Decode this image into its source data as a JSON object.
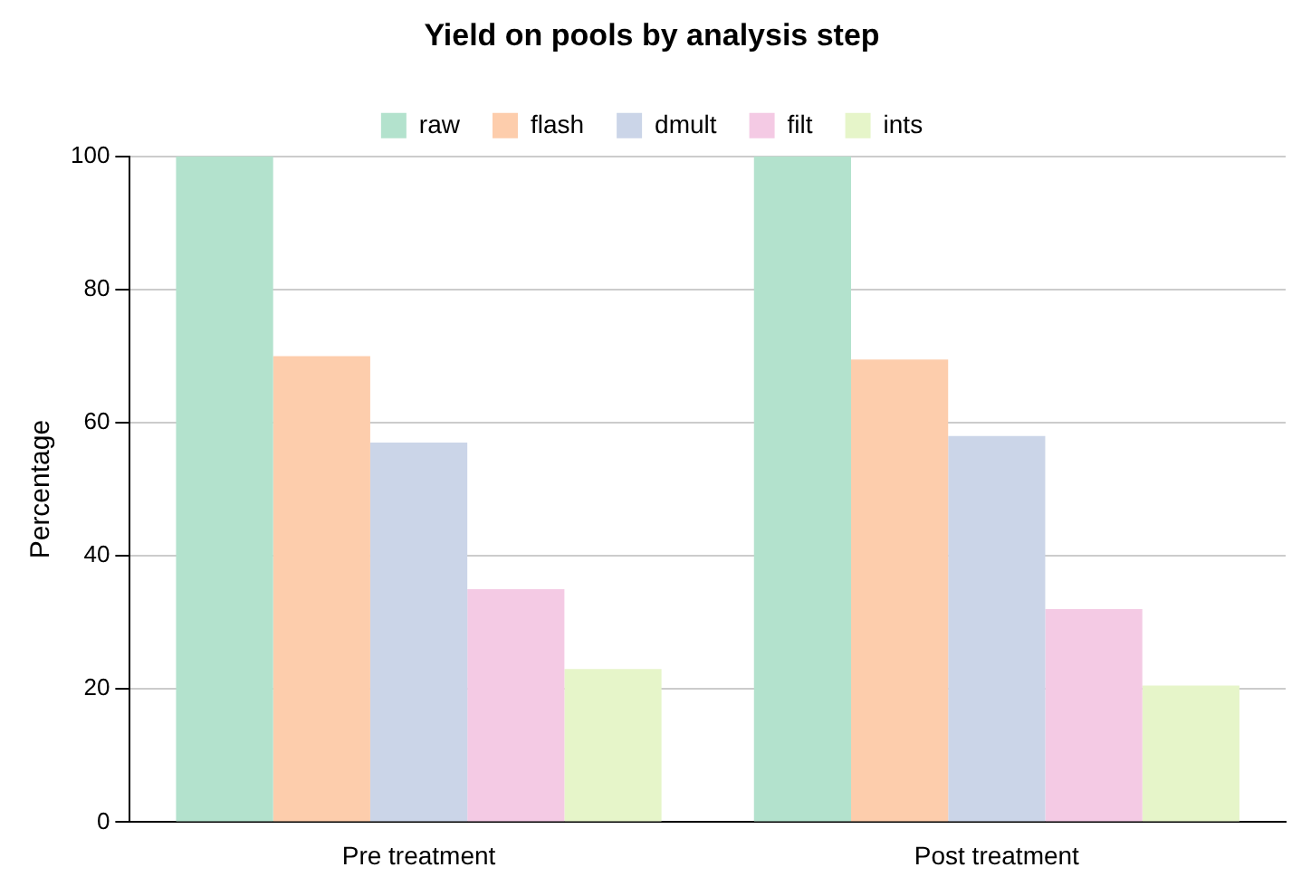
{
  "chart_data": {
    "type": "bar",
    "title": "Yield on pools by analysis step",
    "ylabel": "Percentage",
    "categories": [
      "Pre treatment",
      "Post treatment"
    ],
    "series": [
      {
        "name": "raw",
        "color": "#b3e2cd",
        "values": [
          100,
          100
        ]
      },
      {
        "name": "flash",
        "color": "#fdcdac",
        "values": [
          70,
          69.5
        ]
      },
      {
        "name": "dmult",
        "color": "#cbd5e8",
        "values": [
          57,
          58
        ]
      },
      {
        "name": "filt",
        "color": "#f4cae4",
        "values": [
          35,
          32
        ]
      },
      {
        "name": "ints",
        "color": "#e6f5c9",
        "values": [
          23,
          20.5
        ]
      }
    ],
    "ylim": [
      0,
      100
    ],
    "yticks": [
      0,
      20,
      40,
      60,
      80,
      100
    ],
    "grid": "y",
    "legend": "top"
  }
}
